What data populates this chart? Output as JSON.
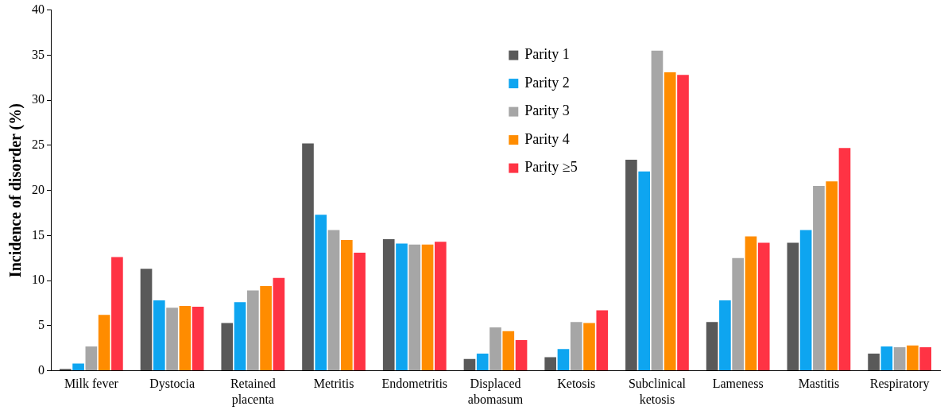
{
  "chart_data": {
    "type": "bar",
    "ylabel": "Incidence of disorder (%)",
    "categories": [
      "Milk fever",
      "Dystocia",
      "Retained placenta",
      "Metritis",
      "Endometritis",
      "Displaced abomasum",
      "Ketosis",
      "Subclinical ketosis",
      "Lameness",
      "Mastitis",
      "Respiratory"
    ],
    "series": [
      {
        "name": "Parity 1",
        "color": "#595959",
        "values": [
          0.2,
          11.3,
          5.3,
          25.2,
          14.6,
          1.3,
          1.5,
          23.4,
          5.4,
          14.2,
          1.9
        ]
      },
      {
        "name": "Parity 2",
        "color": "#0ea5f0",
        "values": [
          0.8,
          7.8,
          7.6,
          17.3,
          14.1,
          1.9,
          2.4,
          22.1,
          7.8,
          15.6,
          2.7
        ]
      },
      {
        "name": "Parity 3",
        "color": "#a6a6a6",
        "values": [
          2.7,
          7.0,
          8.9,
          15.6,
          14.0,
          4.8,
          5.4,
          35.5,
          12.5,
          20.5,
          2.6
        ]
      },
      {
        "name": "Parity 4",
        "color": "#ff8c00",
        "values": [
          6.2,
          7.2,
          9.4,
          14.5,
          14.0,
          4.4,
          5.3,
          33.1,
          14.9,
          21.0,
          2.8
        ]
      },
      {
        "name": "Parity ≥5",
        "color": "#ff3344",
        "values": [
          12.6,
          7.1,
          10.3,
          13.1,
          14.3,
          3.4,
          6.7,
          32.8,
          14.2,
          24.7,
          2.6
        ]
      }
    ],
    "ylim": [
      0,
      40
    ],
    "yticks": [
      0,
      5,
      10,
      15,
      20,
      25,
      30,
      35,
      40
    ],
    "grid": false,
    "legend": "top"
  }
}
